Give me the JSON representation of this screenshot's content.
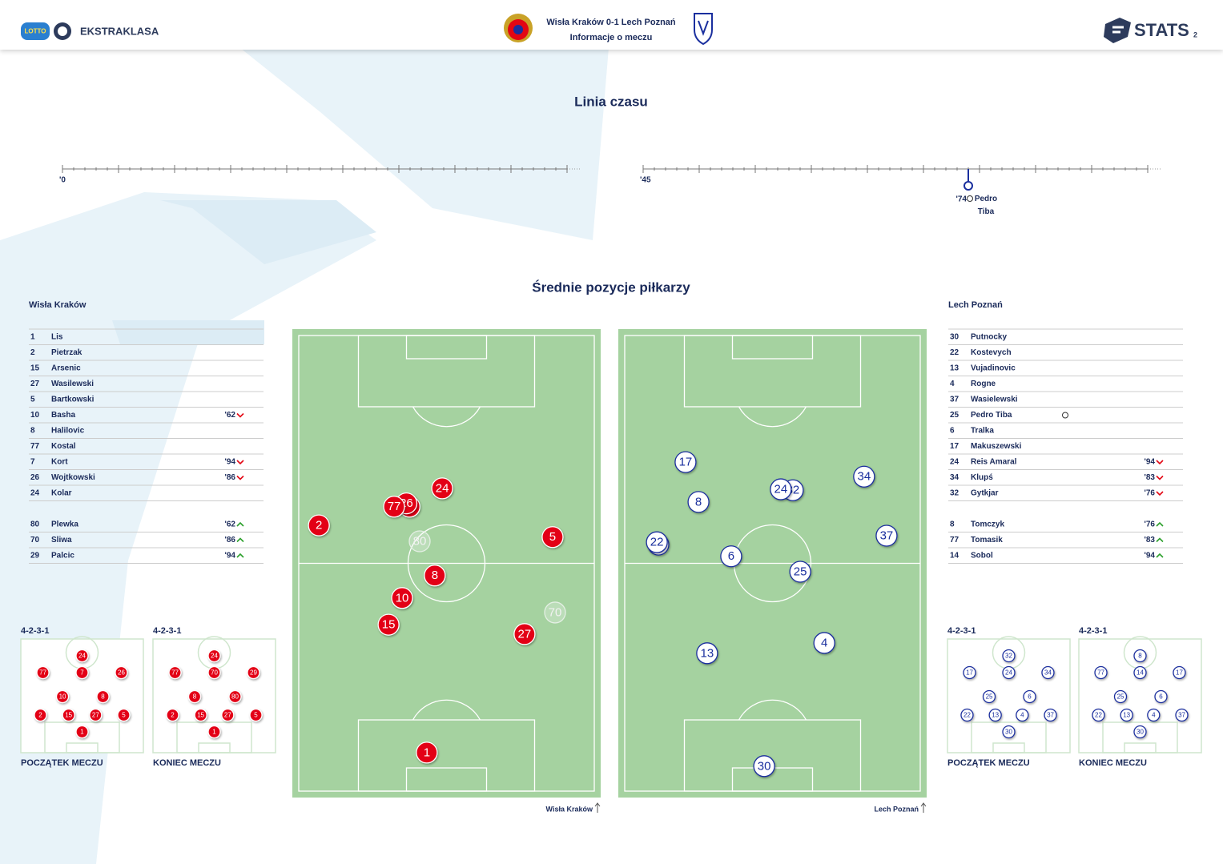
{
  "header": {
    "lotto": "LOTTO",
    "league": "EKSTRAKLASA",
    "match": "Wisła Kraków 0-1 Lech Poznań",
    "subtitle": "Informacje o meczu",
    "brand": "STATS",
    "page": "2"
  },
  "timeline": {
    "title": "Linia czasu",
    "halves": [
      {
        "start": {
          "value": 0,
          "label": "'0"
        }
      },
      {
        "start": {
          "value": 45,
          "label": "'45"
        }
      }
    ],
    "events": [
      {
        "minute": {
          "value": 74,
          "label": "'74"
        },
        "player": "Pedro Tiba",
        "color": "#1a2f9e"
      }
    ]
  },
  "positions": {
    "title": "Średnie pozycje piłkarzy",
    "teams": [
      {
        "name": "Wisła Kraków",
        "color": "#e30613",
        "style": "filled",
        "players": [
          {
            "number": "1",
            "name": "Lis"
          },
          {
            "number": "2",
            "name": "Pietrzak"
          },
          {
            "number": "15",
            "name": "Arsenic"
          },
          {
            "number": "27",
            "name": "Wasilewski"
          },
          {
            "number": "5",
            "name": "Bartkowski"
          },
          {
            "number": "10",
            "name": "Basha",
            "sub": "out",
            "minute": "'62"
          },
          {
            "number": "8",
            "name": "Halilovic"
          },
          {
            "number": "77",
            "name": "Kostal"
          },
          {
            "number": "7",
            "name": "Kort",
            "sub": "out",
            "minute": "'94"
          },
          {
            "number": "26",
            "name": "Wojtkowski",
            "sub": "out",
            "minute": "'86"
          },
          {
            "number": "24",
            "name": "Kolar"
          }
        ],
        "substitutes": [
          {
            "number": "80",
            "name": "Plewka",
            "sub": "in",
            "minute": "'62"
          },
          {
            "number": "70",
            "name": "Sliwa",
            "sub": "in",
            "minute": "'86"
          },
          {
            "number": "29",
            "name": "Palcic",
            "sub": "in",
            "minute": "'94"
          }
        ],
        "dots": [
          {
            "number": "80",
            "x": 41.3,
            "y": 45.3,
            "faded": true
          },
          {
            "number": "70",
            "x": 85.2,
            "y": 60.5,
            "faded": true
          },
          {
            "number": "2",
            "x": 8.6,
            "y": 41.9
          },
          {
            "number": "7",
            "x": 38.0,
            "y": 37.9
          },
          {
            "number": "26",
            "x": 37.0,
            "y": 37.2
          },
          {
            "number": "77",
            "x": 33.0,
            "y": 37.9
          },
          {
            "number": "24",
            "x": 48.6,
            "y": 34.0
          },
          {
            "number": "5",
            "x": 84.4,
            "y": 44.4
          },
          {
            "number": "8",
            "x": 46.2,
            "y": 52.6
          },
          {
            "number": "10",
            "x": 35.6,
            "y": 57.4
          },
          {
            "number": "15",
            "x": 31.2,
            "y": 63.1
          },
          {
            "number": "27",
            "x": 75.3,
            "y": 65.1
          },
          {
            "number": "1",
            "x": 43.6,
            "y": 90.4
          }
        ],
        "formations": [
          {
            "name": "4-2-3-1",
            "label": "POCZĄTEK MECZU",
            "rows": [
              [
                "24"
              ],
              [
                "77",
                "7",
                "26"
              ],
              [
                "10",
                "8"
              ],
              [
                "2",
                "15",
                "27",
                "5"
              ],
              [
                "1"
              ]
            ]
          },
          {
            "name": "4-2-3-1",
            "label": "KONIEC MECZU",
            "rows": [
              [
                "24"
              ],
              [
                "77",
                "70",
                "29"
              ],
              [
                "8",
                "80"
              ],
              [
                "2",
                "15",
                "27",
                "5"
              ],
              [
                "1"
              ]
            ]
          }
        ]
      },
      {
        "name": "Lech Poznań",
        "color": "#1a2f9e",
        "style": "outline",
        "players": [
          {
            "number": "30",
            "name": "Putnocky"
          },
          {
            "number": "22",
            "name": "Kostevych"
          },
          {
            "number": "13",
            "name": "Vujadinovic"
          },
          {
            "number": "4",
            "name": "Rogne"
          },
          {
            "number": "37",
            "name": "Wasielewski"
          },
          {
            "number": "25",
            "name": "Pedro Tiba",
            "goal": true
          },
          {
            "number": "6",
            "name": "Tralka"
          },
          {
            "number": "17",
            "name": "Makuszewski"
          },
          {
            "number": "24",
            "name": "Reis Amaral",
            "sub": "out",
            "minute": "'94"
          },
          {
            "number": "34",
            "name": "Klupś",
            "sub": "out",
            "minute": "'83"
          },
          {
            "number": "32",
            "name": "Gytkjar",
            "sub": "out",
            "minute": "'76"
          }
        ],
        "substitutes": [
          {
            "number": "8",
            "name": "Tomczyk",
            "sub": "in",
            "minute": "'76"
          },
          {
            "number": "77",
            "name": "Tomasik",
            "sub": "in",
            "minute": "'83"
          },
          {
            "number": "14",
            "name": "Sobol",
            "sub": "in",
            "minute": "'94"
          }
        ],
        "dots": [
          {
            "number": "17",
            "x": 21.8,
            "y": 28.4
          },
          {
            "number": "8",
            "x": 26.0,
            "y": 36.9
          },
          {
            "number": "32",
            "x": 56.6,
            "y": 34.4
          },
          {
            "number": "24",
            "x": 52.7,
            "y": 34.2
          },
          {
            "number": "34",
            "x": 79.7,
            "y": 31.5
          },
          {
            "number": "77",
            "x": 13.0,
            "y": 46.0
          },
          {
            "number": "22",
            "x": 12.5,
            "y": 45.5
          },
          {
            "number": "37",
            "x": 87.0,
            "y": 44.1
          },
          {
            "number": "6",
            "x": 36.6,
            "y": 48.5
          },
          {
            "number": "25",
            "x": 59.0,
            "y": 51.8
          },
          {
            "number": "4",
            "x": 66.8,
            "y": 67.0
          },
          {
            "number": "13",
            "x": 28.8,
            "y": 69.2
          },
          {
            "number": "30",
            "x": 47.3,
            "y": 93.3
          }
        ],
        "formations": [
          {
            "name": "4-2-3-1",
            "label": "POCZĄTEK MECZU",
            "rows": [
              [
                "32"
              ],
              [
                "17",
                "24",
                "34"
              ],
              [
                "25",
                "6"
              ],
              [
                "22",
                "13",
                "4",
                "37"
              ],
              [
                "30"
              ]
            ]
          },
          {
            "name": "4-2-3-1",
            "label": "KONIEC MECZU",
            "rows": [
              [
                "8"
              ],
              [
                "77",
                "14",
                "17"
              ],
              [
                "25",
                "6"
              ],
              [
                "22",
                "13",
                "4",
                "37"
              ],
              [
                "30"
              ]
            ]
          }
        ]
      }
    ]
  }
}
